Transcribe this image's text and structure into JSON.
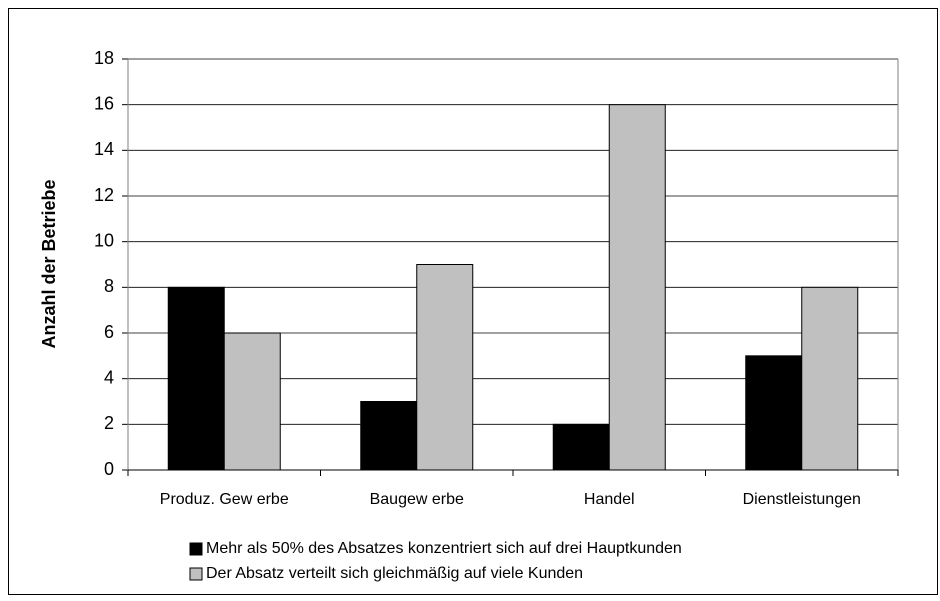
{
  "chart_data": {
    "type": "bar",
    "y_label": "Anzahl der Betriebe",
    "categories": [
      "Produz. Gew erbe",
      "Baugew erbe",
      "Handel",
      "Dienstleistungen"
    ],
    "series": [
      {
        "name": "Mehr als 50% des Absatzes konzentriert sich auf drei Hauptkunden",
        "color": "#000000",
        "values": [
          8,
          3,
          2,
          5
        ]
      },
      {
        "name": "Der Absatz verteilt sich gleichmäßig auf viele Kunden",
        "color": "#c0c0c0",
        "values": [
          6,
          9,
          16,
          8
        ]
      }
    ],
    "ylim": [
      0,
      18
    ],
    "yticks": [
      0,
      2,
      4,
      6,
      8,
      10,
      12,
      14,
      16,
      18
    ],
    "grid": true,
    "legend": "bottom"
  }
}
